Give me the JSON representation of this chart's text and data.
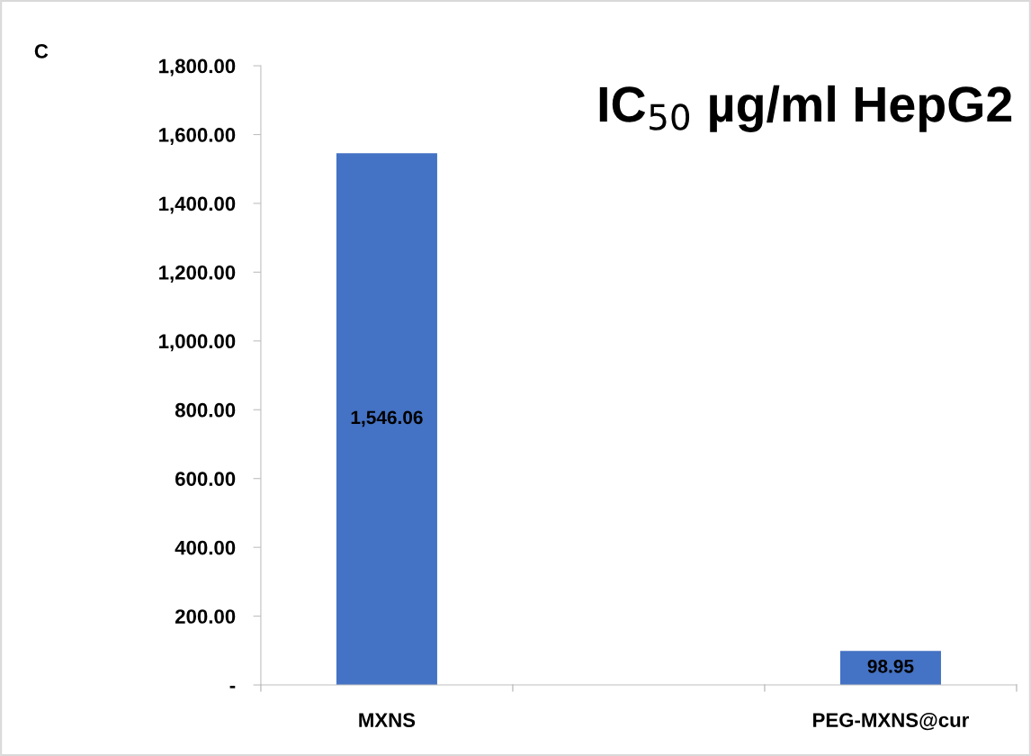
{
  "chart_data": {
    "type": "bar",
    "title": "IC$_{50}$ µg/ml HepG2",
    "categories": [
      "MXNS",
      null,
      "PEG-MXNS@cur"
    ],
    "values": [
      1546.06,
      null,
      98.95
    ],
    "color": "#4472c4",
    "value_labels": [
      "1,546.06",
      null,
      "98.95"
    ],
    "ylim": [
      0,
      1800
    ],
    "yticks": [
      {
        "value": 0,
        "label": "-"
      },
      {
        "value": 200,
        "label": "200.00"
      },
      {
        "value": 400,
        "label": "400.00"
      },
      {
        "value": 600,
        "label": "600.00"
      },
      {
        "value": 800,
        "label": "800.00"
      },
      {
        "value": 1000,
        "label": "1,000.00"
      },
      {
        "value": 1200,
        "label": "1,200.00"
      },
      {
        "value": 1400,
        "label": "1,400.00"
      },
      {
        "value": 1600,
        "label": "1,600.00"
      },
      {
        "value": 1800,
        "label": "1,800.00"
      }
    ],
    "annotations": [
      "C"
    ],
    "grid": false
  }
}
